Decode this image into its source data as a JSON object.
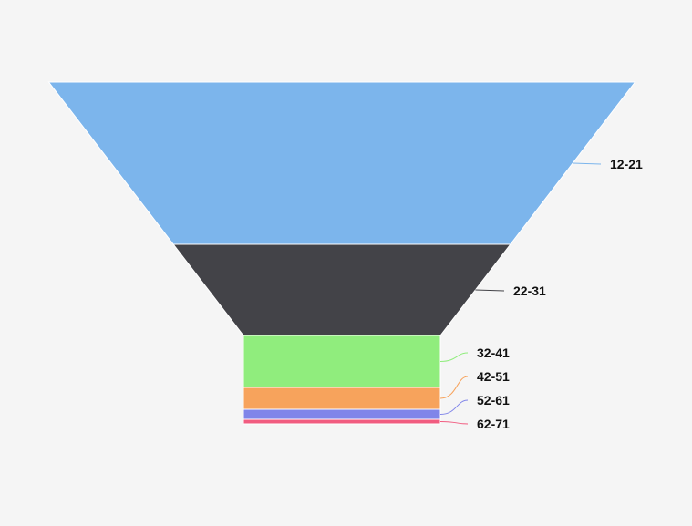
{
  "chart_data": {
    "type": "funnel",
    "title": "",
    "categories": [
      "12-21",
      "22-31",
      "32-41",
      "42-51",
      "52-61",
      "62-71"
    ],
    "colors": [
      "#7cb5ec",
      "#434348",
      "#90ed7d",
      "#f7a35c",
      "#8085e9",
      "#f15c80"
    ],
    "legend": "none",
    "grid": false
  }
}
